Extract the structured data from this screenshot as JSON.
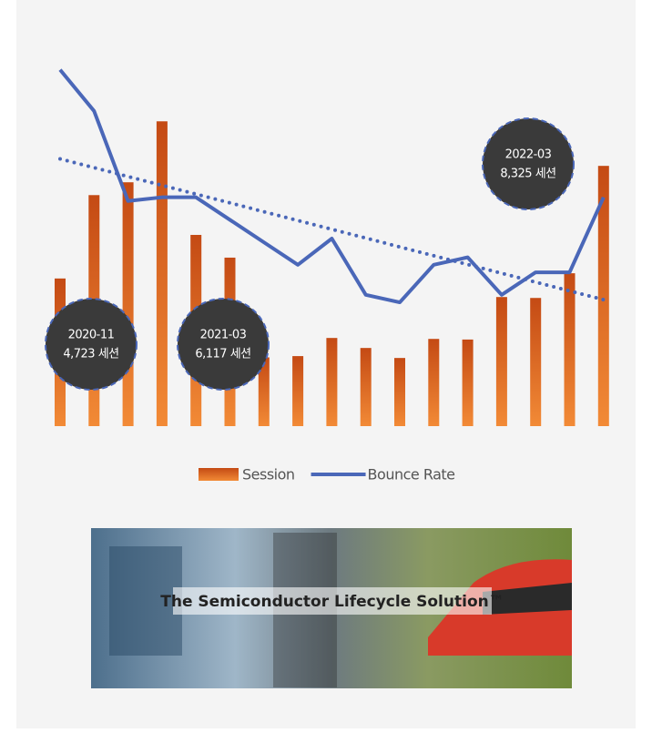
{
  "chart_data": {
    "type": "bar-line",
    "categories": [
      "2020-11",
      null,
      null,
      null,
      "2021-03",
      null,
      null,
      null,
      null,
      null,
      null,
      null,
      null,
      null,
      null,
      null,
      "2022-03"
    ],
    "series": [
      {
        "name": "Session",
        "type": "bar",
        "color": "#d4581c",
        "values": [
          4723,
          7390,
          7800,
          9750,
          6117,
          5390,
          2200,
          2240,
          2820,
          2500,
          2180,
          2790,
          2770,
          4130,
          4100,
          4890,
          8325
        ],
        "value_labels": [
          "4,723 세션",
          null,
          null,
          null,
          "6,117 세션",
          null,
          null,
          null,
          null,
          null,
          null,
          null,
          null,
          null,
          null,
          null,
          "8,325 세션"
        ]
      },
      {
        "name": "Bounce Rate",
        "type": "line",
        "axis": "y2",
        "color": "#4a67b8",
        "values": [
          95,
          84,
          60,
          61,
          61,
          55,
          49,
          43,
          50,
          35,
          33,
          43,
          45,
          35,
          41,
          41,
          61
        ],
        "trendline": true
      }
    ],
    "ylim": [
      0,
      12000
    ],
    "y2lim": [
      0,
      100
    ],
    "grid": false,
    "legend": "bottom"
  },
  "banner": {
    "text": "The Semiconductor Lifecycle Solution™"
  }
}
